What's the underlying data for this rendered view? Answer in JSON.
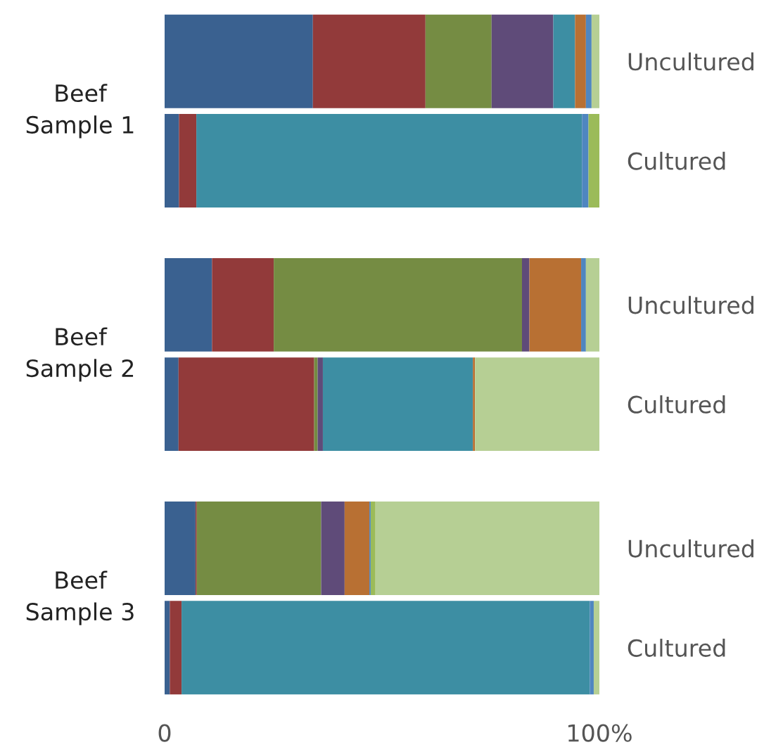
{
  "chart_data": {
    "type": "bar",
    "orientation": "horizontal",
    "stacked": true,
    "categories": [
      "Uncultured",
      "Cultured",
      "Uncultured",
      "Cultured",
      "Uncultured",
      "Cultured"
    ],
    "annotations": [
      "Beef\nSample 1",
      "Beef\nSample 2",
      "Beef\nSample 3"
    ],
    "series": [
      {
        "color": "#3a6190",
        "values": [
          34.1,
          3.3,
          10.9,
          3.2,
          7.1,
          1.2
        ]
      },
      {
        "color": "#923a3a",
        "values": [
          25.9,
          4.0,
          14.2,
          31.2,
          0.3,
          2.7
        ]
      },
      {
        "color": "#758c43",
        "values": [
          15.2,
          0,
          57.1,
          0.8,
          28.6,
          0
        ]
      },
      {
        "color": "#5f4b79",
        "values": [
          14.2,
          0,
          1.7,
          1.2,
          5.4,
          0
        ]
      },
      {
        "color": "#3d8ea3",
        "values": [
          5.0,
          88.7,
          0,
          34.5,
          0,
          93.9
        ]
      },
      {
        "color": "#b87033",
        "values": [
          2.5,
          0,
          11.9,
          0.5,
          5.7,
          0
        ]
      },
      {
        "color": "#4f86c0",
        "values": [
          1.3,
          1.5,
          1.1,
          0,
          0.3,
          0.9
        ]
      },
      {
        "color": "#9bbb59",
        "values": [
          0,
          2.5,
          0,
          0,
          1.1,
          0
        ]
      },
      {
        "color": "#b6cf94",
        "values": [
          1.8,
          0,
          3.1,
          28.6,
          51.5,
          1.3
        ]
      }
    ],
    "xlim": [
      0,
      100
    ],
    "xticks": [
      0,
      {
        "value": 100,
        "label": "100%"
      }
    ],
    "grid": false
  }
}
